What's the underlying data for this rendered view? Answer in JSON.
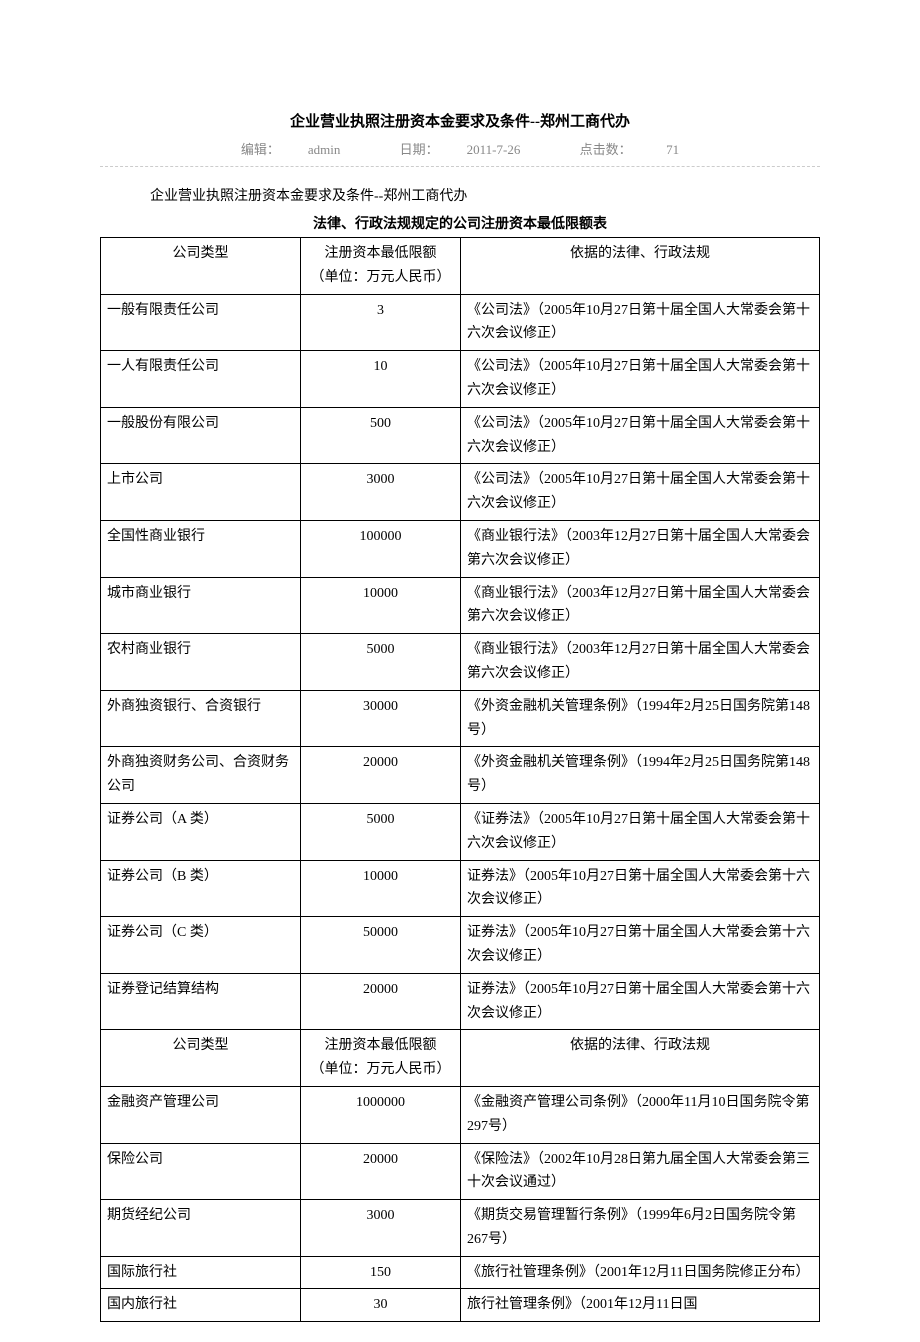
{
  "title": "企业营业执照注册资本金要求及条件--郑州工商代办",
  "meta": {
    "editor_label": "编辑：",
    "editor": "admin",
    "date_label": "日期：",
    "date": "2011-7-26",
    "hits_label": "点击数：",
    "hits": "71"
  },
  "intro": "企业营业执照注册资本金要求及条件--郑州工商代办",
  "table_title": "法律、行政法规规定的公司注册资本最低限额表",
  "header": {
    "type": "公司类型",
    "amount_line1": "注册资本最低限额",
    "amount_line2": "（单位：万元人民币）",
    "law": "依据的法律、行政法规"
  },
  "rows": [
    {
      "type": "一般有限责任公司",
      "amount": "3",
      "law": "《公司法》（2005年10月27日第十届全国人大常委会第十六次会议修正）"
    },
    {
      "type": "一人有限责任公司",
      "amount": "10",
      "law": "《公司法》（2005年10月27日第十届全国人大常委会第十六次会议修正）"
    },
    {
      "type": "一般股份有限公司",
      "amount": "500",
      "law": "《公司法》（2005年10月27日第十届全国人大常委会第十六次会议修正）"
    },
    {
      "type": "上市公司",
      "amount": "3000",
      "law": "《公司法》（2005年10月27日第十届全国人大常委会第十六次会议修正）"
    },
    {
      "type": "全国性商业银行",
      "amount": "100000",
      "law": "《商业银行法》（2003年12月27日第十届全国人大常委会第六次会议修正）"
    },
    {
      "type": "城市商业银行",
      "amount": "10000",
      "law": "《商业银行法》（2003年12月27日第十届全国人大常委会第六次会议修正）"
    },
    {
      "type": "农村商业银行",
      "amount": "5000",
      "law": "《商业银行法》（2003年12月27日第十届全国人大常委会第六次会议修正）"
    },
    {
      "type": "外商独资银行、合资银行",
      "amount": "30000",
      "law": "《外资金融机关管理条例》（1994年2月25日国务院第148号）"
    },
    {
      "type": "外商独资财务公司、合资财务公司",
      "amount": "20000",
      "law": "《外资金融机关管理条例》（1994年2月25日国务院第148号）"
    },
    {
      "type": "证券公司（A 类）",
      "amount": "5000",
      "law": "《证券法》（2005年10月27日第十届全国人大常委会第十六次会议修正）"
    },
    {
      "type": "证券公司（B 类）",
      "amount": "10000",
      "law": "证券法》（2005年10月27日第十届全国人大常委会第十六次会议修正）"
    },
    {
      "type": "证券公司（C 类）",
      "amount": "50000",
      "law": "证券法》（2005年10月27日第十届全国人大常委会第十六次会议修正）"
    },
    {
      "type": "证券登记结算结构",
      "amount": "20000",
      "law": "证券法》（2005年10月27日第十届全国人大常委会第十六次会议修正）"
    }
  ],
  "rows2": [
    {
      "type": "金融资产管理公司",
      "amount": "1000000",
      "law": "《金融资产管理公司条例》（2000年11月10日国务院令第297号）"
    },
    {
      "type": "保险公司",
      "amount": "20000",
      "law": "《保险法》（2002年10月28日第九届全国人大常委会第三十次会议通过）"
    },
    {
      "type": "期货经纪公司",
      "amount": "3000",
      "law": "《期货交易管理暂行条例》（1999年6月2日国务院令第267号）"
    },
    {
      "type": "国际旅行社",
      "amount": "150",
      "law": "《旅行社管理条例》（2001年12月11日国务院修正分布）"
    },
    {
      "type": "国内旅行社",
      "amount": "30",
      "law": "旅行社管理条例》（2001年12月11日国"
    }
  ]
}
